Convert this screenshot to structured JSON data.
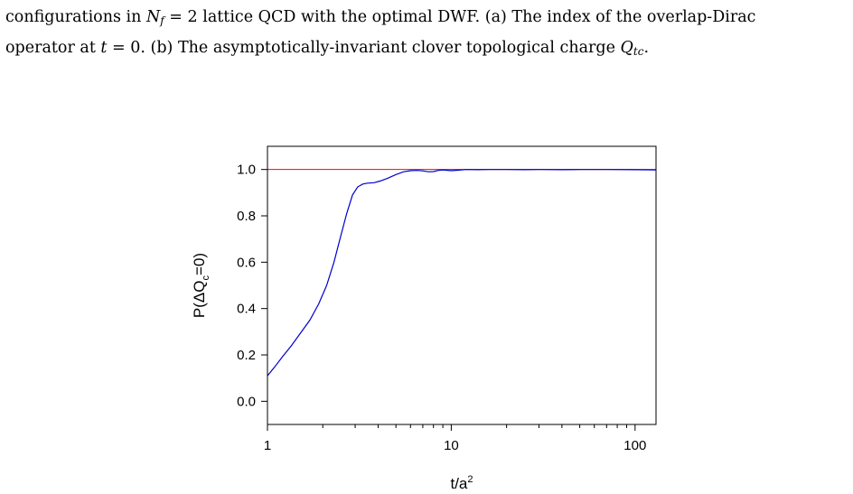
{
  "caption": {
    "line1_pre": "configurations in ",
    "line1_math_var": "N",
    "line1_math_sub": "f",
    "line1_math_eq": " = 2",
    "line1_post": " lattice QCD with the optimal DWF. (a) The index of the overlap-Dirac",
    "line2_pre": "operator at ",
    "line2_math_var": "t",
    "line2_math_eq": " = 0",
    "line2_mid": ". (b) The asymptotically-invariant clover topological charge ",
    "line2_math_q": "Q",
    "line2_math_qsub": "tc",
    "line2_end": "."
  },
  "chart_data": {
    "type": "line",
    "x_scale": "log",
    "xlim": [
      1,
      130
    ],
    "ylim": [
      -0.1,
      1.1
    ],
    "x_ticks": [
      1,
      10,
      100
    ],
    "x_tick_labels": [
      "1",
      "10",
      "100"
    ],
    "y_ticks": [
      0.0,
      0.2,
      0.4,
      0.6,
      0.8,
      1.0
    ],
    "y_tick_labels": [
      "0.0",
      "0.2",
      "0.4",
      "0.6",
      "0.8",
      "1.0"
    ],
    "xlabel_base": "t/a",
    "xlabel_sup": "2",
    "ylabel_pre": "P(ΔQ",
    "ylabel_sub": "c",
    "ylabel_post": "=0)",
    "grid": false,
    "reference_line": {
      "y": 1.0,
      "color": "#ff0000"
    },
    "series": [
      {
        "color": "#0000cc",
        "x": [
          1.0,
          1.1,
          1.2,
          1.35,
          1.5,
          1.7,
          1.9,
          2.1,
          2.3,
          2.5,
          2.7,
          2.9,
          3.1,
          3.3,
          3.5,
          3.8,
          4.1,
          4.5,
          5.0,
          5.5,
          6.0,
          6.5,
          7.0,
          7.5,
          8.0,
          8.5,
          9.0,
          10.0,
          11.0,
          12.0,
          14.0,
          16.0,
          20.0,
          25.0,
          30.0,
          40.0,
          50.0,
          70.0,
          100.0,
          130.0
        ],
        "y": [
          0.11,
          0.15,
          0.19,
          0.24,
          0.29,
          0.35,
          0.42,
          0.5,
          0.6,
          0.71,
          0.81,
          0.89,
          0.925,
          0.937,
          0.941,
          0.943,
          0.95,
          0.962,
          0.978,
          0.99,
          0.995,
          0.996,
          0.994,
          0.99,
          0.991,
          0.996,
          0.998,
          0.995,
          0.997,
          1.0,
          0.999,
          1.0,
          1.0,
          0.999,
          1.0,
          0.999,
          1.0,
          1.0,
          0.999,
          0.998
        ]
      }
    ]
  },
  "colors": {
    "axis": "#000000",
    "curve": "#0000cc",
    "reference": "#ff0000"
  }
}
